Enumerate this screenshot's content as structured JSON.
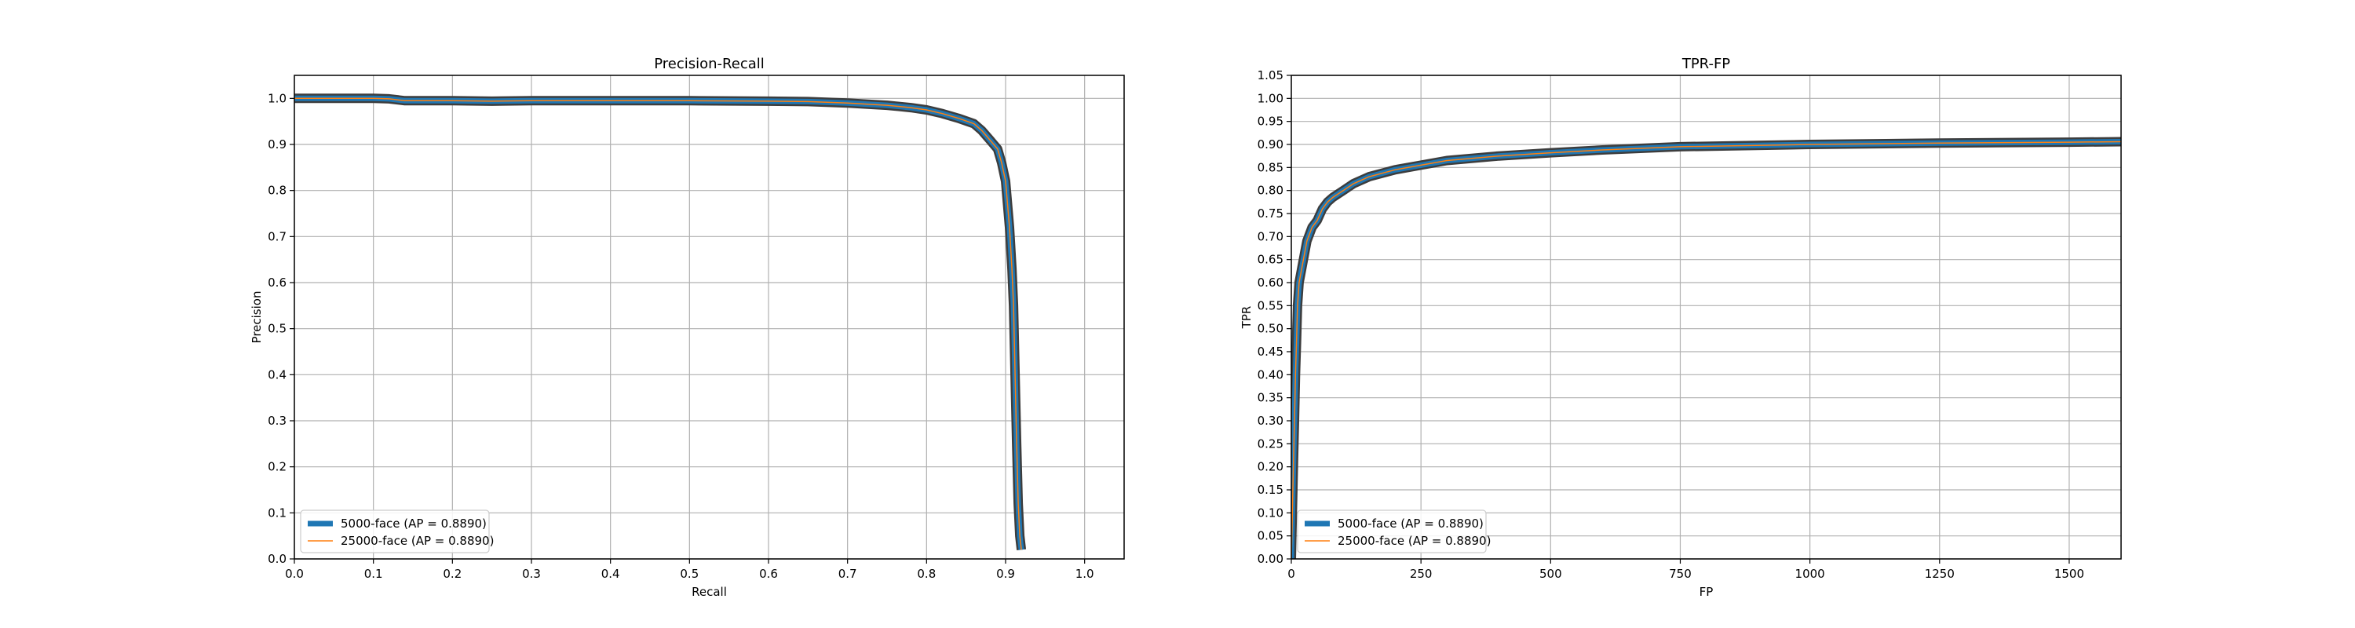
{
  "chart_data": [
    {
      "type": "line",
      "title": "Precision-Recall",
      "xlabel": "Recall",
      "ylabel": "Precision",
      "xlim": [
        0,
        1.05
      ],
      "ylim": [
        0,
        1.05
      ],
      "xticks": [
        0.0,
        0.1,
        0.2,
        0.3,
        0.4,
        0.5,
        0.6,
        0.7,
        0.8,
        0.9,
        1.0
      ],
      "yticks": [
        0.0,
        0.1,
        0.2,
        0.3,
        0.4,
        0.5,
        0.6,
        0.7,
        0.8,
        0.9,
        1.0
      ],
      "xtick_labels": [
        "0.0",
        "0.1",
        "0.2",
        "0.3",
        "0.4",
        "0.5",
        "0.6",
        "0.7",
        "0.8",
        "0.9",
        "1.0"
      ],
      "ytick_labels": [
        "0.0",
        "0.1",
        "0.2",
        "0.3",
        "0.4",
        "0.5",
        "0.6",
        "0.7",
        "0.8",
        "0.9",
        "1.0"
      ],
      "grid": true,
      "legend_position": "lower-left",
      "series": [
        {
          "name": "5000-face (AP = 0.8890)",
          "color": "#1f77b4",
          "x": [
            0.0,
            0.05,
            0.1,
            0.12,
            0.14,
            0.2,
            0.25,
            0.3,
            0.4,
            0.5,
            0.6,
            0.65,
            0.7,
            0.73,
            0.75,
            0.78,
            0.8,
            0.82,
            0.84,
            0.86,
            0.87,
            0.88,
            0.89,
            0.895,
            0.9,
            0.905,
            0.908,
            0.91,
            0.912,
            0.914,
            0.916,
            0.918,
            0.92
          ],
          "y": [
            1.0,
            1.0,
            1.0,
            0.999,
            0.995,
            0.995,
            0.994,
            0.995,
            0.995,
            0.995,
            0.994,
            0.993,
            0.99,
            0.987,
            0.985,
            0.98,
            0.975,
            0.967,
            0.957,
            0.945,
            0.93,
            0.91,
            0.89,
            0.86,
            0.82,
            0.72,
            0.63,
            0.55,
            0.4,
            0.25,
            0.12,
            0.05,
            0.02
          ]
        },
        {
          "name": "25000-face (AP = 0.8890)",
          "color": "#ff7f0e",
          "x": [
            0.0,
            0.05,
            0.1,
            0.12,
            0.14,
            0.2,
            0.25,
            0.3,
            0.4,
            0.5,
            0.6,
            0.65,
            0.7,
            0.73,
            0.75,
            0.78,
            0.8,
            0.82,
            0.84,
            0.86,
            0.87,
            0.88,
            0.89,
            0.895,
            0.9,
            0.905,
            0.908,
            0.91,
            0.912,
            0.914,
            0.916,
            0.918,
            0.92
          ],
          "y": [
            1.0,
            1.0,
            1.0,
            0.999,
            0.995,
            0.995,
            0.994,
            0.995,
            0.995,
            0.995,
            0.994,
            0.993,
            0.99,
            0.987,
            0.985,
            0.98,
            0.975,
            0.967,
            0.957,
            0.945,
            0.93,
            0.91,
            0.89,
            0.86,
            0.82,
            0.72,
            0.63,
            0.55,
            0.4,
            0.25,
            0.12,
            0.05,
            0.02
          ]
        }
      ]
    },
    {
      "type": "line",
      "title": "TPR-FP",
      "xlabel": "FP",
      "ylabel": "TPR",
      "xlim": [
        0,
        1600
      ],
      "ylim": [
        0,
        1.05
      ],
      "xticks": [
        0,
        250,
        500,
        750,
        1000,
        1250,
        1500
      ],
      "yticks": [
        0.0,
        0.05,
        0.1,
        0.15,
        0.2,
        0.25,
        0.3,
        0.35,
        0.4,
        0.45,
        0.5,
        0.55,
        0.6,
        0.65,
        0.7,
        0.75,
        0.8,
        0.85,
        0.9,
        0.95,
        1.0,
        1.05
      ],
      "xtick_labels": [
        "0",
        "250",
        "500",
        "750",
        "1000",
        "1250",
        "1500"
      ],
      "ytick_labels": [
        "0.00",
        "0.05",
        "0.10",
        "0.15",
        "0.20",
        "0.25",
        "0.30",
        "0.35",
        "0.40",
        "0.45",
        "0.50",
        "0.55",
        "0.60",
        "0.65",
        "0.70",
        "0.75",
        "0.80",
        "0.85",
        "0.90",
        "0.95",
        "1.00",
        "1.05"
      ],
      "grid": true,
      "legend_position": "lower-left",
      "series": [
        {
          "name": "5000-face (AP = 0.8890)",
          "color": "#1f77b4",
          "x": [
            0,
            2,
            4,
            6,
            8,
            10,
            12,
            15,
            20,
            25,
            30,
            40,
            50,
            60,
            70,
            80,
            100,
            120,
            150,
            200,
            250,
            300,
            400,
            500,
            600,
            750,
            1000,
            1250,
            1500,
            1600
          ],
          "y": [
            0.0,
            0.1,
            0.2,
            0.3,
            0.4,
            0.47,
            0.55,
            0.6,
            0.63,
            0.66,
            0.69,
            0.72,
            0.735,
            0.76,
            0.775,
            0.785,
            0.8,
            0.815,
            0.83,
            0.845,
            0.855,
            0.865,
            0.875,
            0.882,
            0.888,
            0.895,
            0.9,
            0.903,
            0.905,
            0.906
          ]
        },
        {
          "name": "25000-face (AP = 0.8890)",
          "color": "#ff7f0e",
          "x": [
            0,
            2,
            4,
            6,
            8,
            10,
            12,
            15,
            20,
            25,
            30,
            40,
            50,
            60,
            70,
            80,
            100,
            120,
            150,
            200,
            250,
            300,
            400,
            500,
            600,
            750,
            1000,
            1250,
            1500,
            1600
          ],
          "y": [
            0.0,
            0.1,
            0.2,
            0.3,
            0.4,
            0.47,
            0.55,
            0.6,
            0.63,
            0.66,
            0.69,
            0.72,
            0.735,
            0.76,
            0.775,
            0.785,
            0.8,
            0.815,
            0.83,
            0.845,
            0.855,
            0.865,
            0.875,
            0.882,
            0.888,
            0.895,
            0.9,
            0.903,
            0.905,
            0.906
          ]
        }
      ]
    }
  ]
}
